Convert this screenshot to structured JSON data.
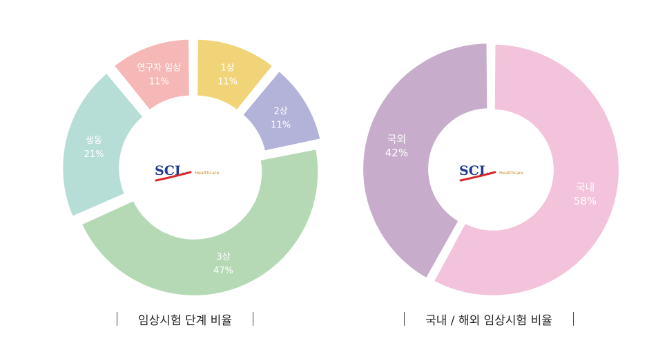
{
  "chart_data": [
    {
      "type": "pie",
      "title": "임상시험 단계 비율",
      "categories": [
        "1상",
        "2상",
        "3상",
        "생동",
        "연구자 임상"
      ],
      "values": [
        11,
        11,
        47,
        21,
        11
      ],
      "value_labels": [
        "11%",
        "11%",
        "47%",
        "21%",
        "11%"
      ],
      "colors": [
        "#f2d478",
        "#b3b2d8",
        "#b5d9b5",
        "#b7ddd7",
        "#f6b8b6"
      ],
      "center_logo": {
        "brand": "SCL",
        "subtext": "Healthcare"
      }
    },
    {
      "type": "pie",
      "title": "국내 / 해외 임상시험 비율",
      "categories": [
        "국내",
        "국외"
      ],
      "values": [
        58,
        42
      ],
      "value_labels": [
        "58%",
        "42%"
      ],
      "colors": [
        "#f2c3da",
        "#c7adcb"
      ],
      "center_logo": {
        "brand": "SCL",
        "subtext": "Healthcare"
      }
    }
  ]
}
